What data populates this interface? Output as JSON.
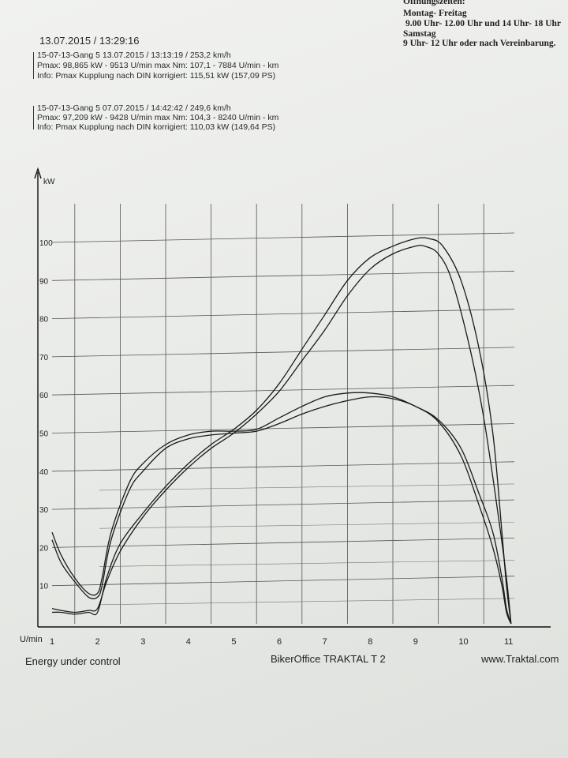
{
  "opening_hours": {
    "heading": "Öffnungszeiten:",
    "weekdays_label": "Montag- Freitag",
    "weekdays_hours": "9.00 Uhr- 12.00 Uhr und 14 Uhr- 18 Uhr",
    "saturday_label": "Samstag",
    "saturday_hours": "9 Uhr- 12 Uhr oder nach Vereinbarung."
  },
  "print_datetime": "13.07.2015  /  13:29:16",
  "runs": [
    {
      "line1": "15-07-13-Gang 5     13.07.2015   /  13:13:19  / 253,2 km/h",
      "line2": "Pmax: 98,865 kW - 9513 U/min    max Nm: 107,1 - 7884 U/min     - km",
      "line3": "Info: Pmax Kupplung nach DIN korrigiert: 115,51 kW (157,09 PS)"
    },
    {
      "line1": "15-07-13-Gang 5     07.07.2015   /  14:42:42  / 249,6 km/h",
      "line2": "Pmax: 97,209 kW - 9428 U/min    max Nm: 104,3 - 8240 U/min     - km",
      "line3": "Info: Pmax Kupplung nach DIN korrigiert: 110,03 kW (149,64 PS)"
    }
  ],
  "footer": {
    "left": "Energy  under control",
    "center": "BikerOffice TRAKTAL  T 2",
    "right": "www.Traktal.com"
  },
  "chart_data": {
    "type": "line",
    "ylabel": "kW",
    "xlabel": "U/min",
    "xlim": [
      1,
      11.6
    ],
    "ylim": [
      0,
      110
    ],
    "x_ticks": [
      1,
      2,
      3,
      4,
      5,
      6,
      7,
      8,
      9,
      10,
      11
    ],
    "y_ticks": [
      10,
      20,
      30,
      40,
      50,
      60,
      70,
      80,
      90,
      100
    ],
    "grid": true,
    "series": [
      {
        "x": [
          1.0,
          1.2,
          1.5,
          1.8,
          2.0,
          2.2,
          2.5,
          3.0,
          3.5,
          4.0,
          4.5,
          5.0,
          5.5,
          6.0,
          6.5,
          7.0,
          7.5,
          8.0,
          8.5,
          9.0,
          9.3,
          9.6,
          10.0,
          10.4,
          10.7,
          10.9,
          11.0,
          11.1
        ],
        "y": [
          3,
          3,
          2.5,
          3,
          3,
          12,
          21,
          29,
          36,
          42,
          47,
          51,
          56,
          63,
          72,
          81,
          90,
          96,
          99,
          101,
          101,
          99,
          90,
          72,
          50,
          24,
          10,
          0
        ]
      },
      {
        "x": [
          1.0,
          1.2,
          1.5,
          1.8,
          2.0,
          2.2,
          2.5,
          3.0,
          3.5,
          4.0,
          4.5,
          5.0,
          5.5,
          6.0,
          6.5,
          7.0,
          7.5,
          8.0,
          8.5,
          9.0,
          9.2,
          9.5,
          9.8,
          10.2,
          10.5,
          10.8,
          11.0,
          11.1
        ],
        "y": [
          4,
          3.5,
          3,
          3.5,
          4,
          11,
          19,
          28,
          35,
          41,
          46,
          50,
          55,
          61,
          69,
          77,
          86,
          93,
          97,
          99,
          99,
          97,
          90,
          72,
          54,
          30,
          12,
          0
        ]
      },
      {
        "x": [
          1.0,
          1.2,
          1.5,
          1.8,
          2.0,
          2.1,
          2.3,
          2.7,
          3.0,
          3.5,
          4.0,
          4.5,
          5.0,
          5.5,
          6.0,
          6.5,
          7.0,
          7.5,
          8.0,
          8.5,
          9.0,
          9.5,
          10.0,
          10.4,
          10.7,
          10.9,
          11.0,
          11.1
        ],
        "y": [
          24,
          18,
          12,
          8,
          8,
          12,
          24,
          37,
          42,
          47,
          49.5,
          50.5,
          50.5,
          51,
          54,
          57,
          59.5,
          60.5,
          60.5,
          59.5,
          57,
          53.5,
          46,
          34,
          24,
          12,
          4,
          0
        ]
      },
      {
        "x": [
          1.0,
          1.2,
          1.5,
          1.8,
          2.0,
          2.1,
          2.3,
          2.7,
          3.0,
          3.5,
          4.0,
          4.5,
          5.0,
          5.5,
          6.0,
          6.5,
          7.0,
          7.5,
          8.0,
          8.5,
          9.0,
          9.5,
          10.0,
          10.4,
          10.7,
          10.9,
          11.0,
          11.1
        ],
        "y": [
          22,
          16,
          11,
          7,
          7,
          10,
          22,
          35,
          40,
          46,
          48.5,
          49.5,
          50,
          50.5,
          52.5,
          55,
          57,
          58.5,
          59.5,
          59,
          57,
          53,
          44,
          31,
          20,
          10,
          3,
          0
        ]
      }
    ]
  }
}
